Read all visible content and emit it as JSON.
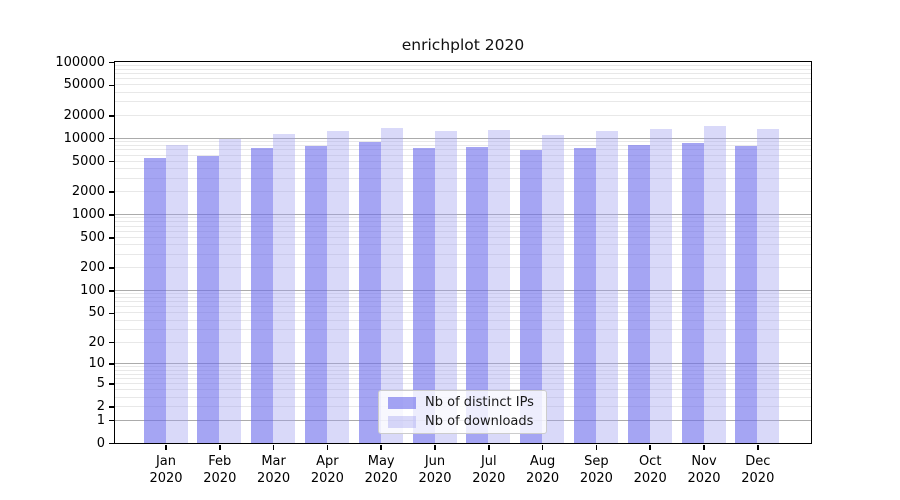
{
  "chart_data": {
    "type": "bar",
    "title": "enrichplot 2020",
    "xlabel": "",
    "ylabel": "",
    "x_months": [
      "Jan",
      "Feb",
      "Mar",
      "Apr",
      "May",
      "Jun",
      "Jul",
      "Aug",
      "Sep",
      "Oct",
      "Nov",
      "Dec"
    ],
    "x_year": "2020",
    "categories": [
      "Jan 2020",
      "Feb 2020",
      "Mar 2020",
      "Apr 2020",
      "May 2020",
      "Jun 2020",
      "Jul 2020",
      "Aug 2020",
      "Sep 2020",
      "Oct 2020",
      "Nov 2020",
      "Dec 2020"
    ],
    "series": [
      {
        "name": "Nb of distinct IPs",
        "color": "rgba(110,110,235,0.62)",
        "values": [
          5500,
          5900,
          7400,
          7800,
          9000,
          7400,
          7600,
          7000,
          7400,
          8200,
          8600,
          8000
        ]
      },
      {
        "name": "Nb of downloads",
        "color": "rgba(160,160,240,0.40)",
        "values": [
          8200,
          9700,
          11400,
          12500,
          13800,
          12600,
          12900,
          11000,
          12500,
          13100,
          14500,
          13100
        ]
      }
    ],
    "yscale": "log1p",
    "ylim": [
      0,
      100000
    ],
    "y_ticks": [
      0,
      1,
      2,
      5,
      10,
      20,
      50,
      100,
      200,
      500,
      1000,
      2000,
      5000,
      10000,
      20000,
      50000,
      100000
    ],
    "y_tick_labels": [
      "0",
      "1",
      "2",
      "5",
      "10",
      "20",
      "50",
      "100",
      "200",
      "500",
      "1000",
      "2000",
      "5000",
      "10000",
      "20000",
      "50000",
      "100000"
    ],
    "grid": "both",
    "legend_position": "lower center",
    "grid_major_color": "#ababab",
    "grid_minor_color": "#e8e8e8"
  }
}
